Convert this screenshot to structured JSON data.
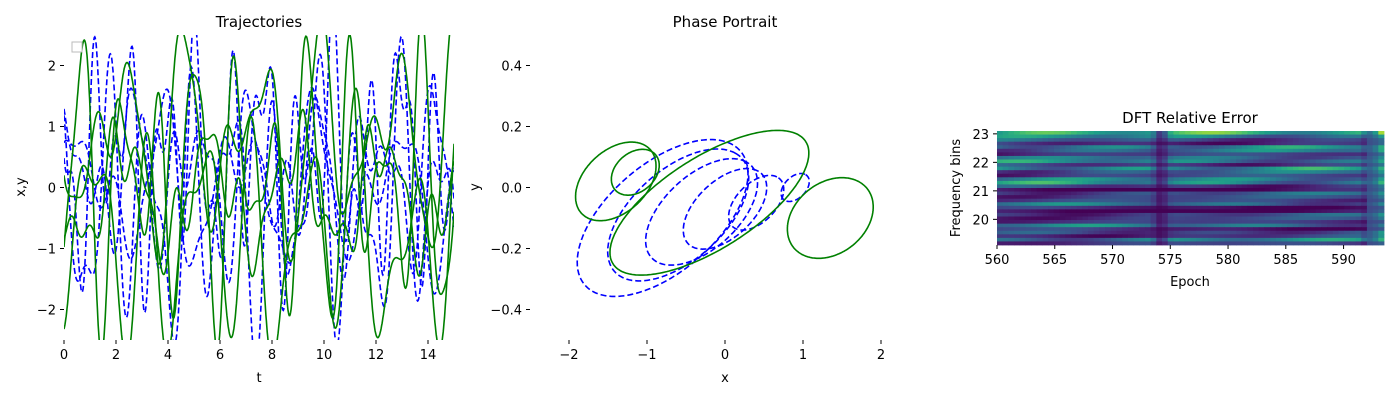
{
  "colors": {
    "dashed_series": "#0000ff",
    "solid_series": "#008000"
  },
  "chart_data": [
    {
      "type": "line",
      "title": "Trajectories",
      "xlabel": "t",
      "ylabel": "x,y",
      "xlim": [
        0,
        15
      ],
      "ylim": [
        -2.5,
        2.5
      ],
      "xticks": [
        "0",
        "2",
        "4",
        "6",
        "8",
        "10",
        "12",
        "14"
      ],
      "yticks": [
        "−2",
        "−1",
        "0",
        "1",
        "2"
      ],
      "legend": "top-left (empty)",
      "series": [
        {
          "style": "dashed",
          "color": "#0000ff",
          "freqs": [
            2.1,
            3.3,
            5.9
          ],
          "amps": [
            0.9,
            0.6,
            0.3
          ],
          "offset": 0.0
        },
        {
          "style": "dashed",
          "color": "#0000ff",
          "freqs": [
            2.7,
            4.4,
            7.1
          ],
          "amps": [
            0.8,
            0.7,
            0.4
          ],
          "offset": 0.2
        },
        {
          "style": "dashed",
          "color": "#0000ff",
          "freqs": [
            3.9,
            6.2,
            1.7
          ],
          "amps": [
            1.5,
            0.9,
            0.5
          ],
          "offset": -0.3
        },
        {
          "style": "dashed",
          "color": "#0000ff",
          "freqs": [
            4.8,
            2.3,
            8.2
          ],
          "amps": [
            1.2,
            0.6,
            0.9
          ],
          "offset": 0.5
        },
        {
          "style": "solid",
          "color": "#008000",
          "freqs": [
            2.4,
            3.6,
            6.5
          ],
          "amps": [
            1.1,
            0.9,
            0.3
          ],
          "offset": 0.8
        },
        {
          "style": "solid",
          "color": "#008000",
          "freqs": [
            1.9,
            5.1,
            7.7
          ],
          "amps": [
            0.8,
            0.4,
            0.3
          ],
          "offset": -0.1
        },
        {
          "style": "solid",
          "color": "#008000",
          "freqs": [
            3.1,
            4.7,
            1.3
          ],
          "amps": [
            1.3,
            0.9,
            0.5
          ],
          "offset": -0.8
        },
        {
          "style": "solid",
          "color": "#008000",
          "freqs": [
            4.3,
            2.9,
            6.9
          ],
          "amps": [
            1.6,
            0.8,
            0.6
          ],
          "offset": 0.1
        }
      ]
    },
    {
      "type": "line",
      "title": "Phase Portrait",
      "xlabel": "x",
      "ylabel": "y",
      "xlim": [
        -2.5,
        2.5
      ],
      "ylim": [
        -0.5,
        0.5
      ],
      "xticks": [
        "−2",
        "−1",
        "0",
        "1",
        "2"
      ],
      "yticks": [
        "−0.4",
        "−0.2",
        "0.0",
        "0.2",
        "0.4"
      ],
      "series": [
        {
          "style": "dashed",
          "color": "#0000ff",
          "ellipses": [
            {
              "cx": 0.9,
              "cy": 0.0,
              "rx": 0.5,
              "ry": 0.12,
              "rot": 60
            },
            {
              "cx": 0.4,
              "cy": -0.05,
              "rx": 1.0,
              "ry": 0.22,
              "rot": 58
            },
            {
              "cx": 0.0,
              "cy": -0.07,
              "rx": 1.5,
              "ry": 0.32,
              "rot": 56
            },
            {
              "cx": -0.3,
              "cy": -0.08,
              "rx": 2.0,
              "ry": 0.42,
              "rot": 55
            },
            {
              "cx": -0.6,
              "cy": -0.09,
              "rx": 2.5,
              "ry": 0.52,
              "rot": 54
            },
            {
              "cx": -0.8,
              "cy": -0.1,
              "rx": 3.0,
              "ry": 0.62,
              "rot": 53
            }
          ]
        },
        {
          "style": "solid",
          "color": "#008000",
          "ellipses": [
            {
              "cx": -1.15,
              "cy": 0.05,
              "rx": 0.8,
              "ry": 0.22,
              "rot": 62
            },
            {
              "cx": -1.4,
              "cy": 0.02,
              "rx": 1.4,
              "ry": 0.35,
              "rot": 60
            },
            {
              "cx": 1.35,
              "cy": -0.1,
              "rx": 1.4,
              "ry": 0.4,
              "rot": 62
            },
            {
              "cx": -0.2,
              "cy": -0.05,
              "rx": 3.2,
              "ry": 0.55,
              "rot": 42
            }
          ]
        }
      ]
    },
    {
      "type": "heatmap",
      "title": "DFT Relative Error",
      "xlabel": "Epoch",
      "ylabel": "Frequency bins",
      "xlim": [
        560,
        593.5
      ],
      "ylim": [
        19.1,
        23.1
      ],
      "xticks": [
        "560",
        "565",
        "570",
        "575",
        "580",
        "585",
        "590"
      ],
      "yticks": [
        "20",
        "21",
        "22",
        "23"
      ],
      "colormap": "viridis",
      "rows": 32,
      "cols": 68,
      "bright_rows": [
        0.72,
        0.5,
        0.35,
        0.25,
        0.62,
        0.45,
        0.15,
        0.38,
        0.55,
        0.3,
        0.68,
        0.4,
        0.2,
        0.48,
        0.6,
        0.28,
        0.12,
        0.35,
        0.22,
        0.18,
        0.42,
        0.15,
        0.1,
        0.3,
        0.2,
        0.12,
        0.45,
        0.18,
        0.35,
        0.25,
        0.5,
        0.15
      ],
      "dark_epochs": [
        574.2,
        592.4
      ]
    }
  ]
}
